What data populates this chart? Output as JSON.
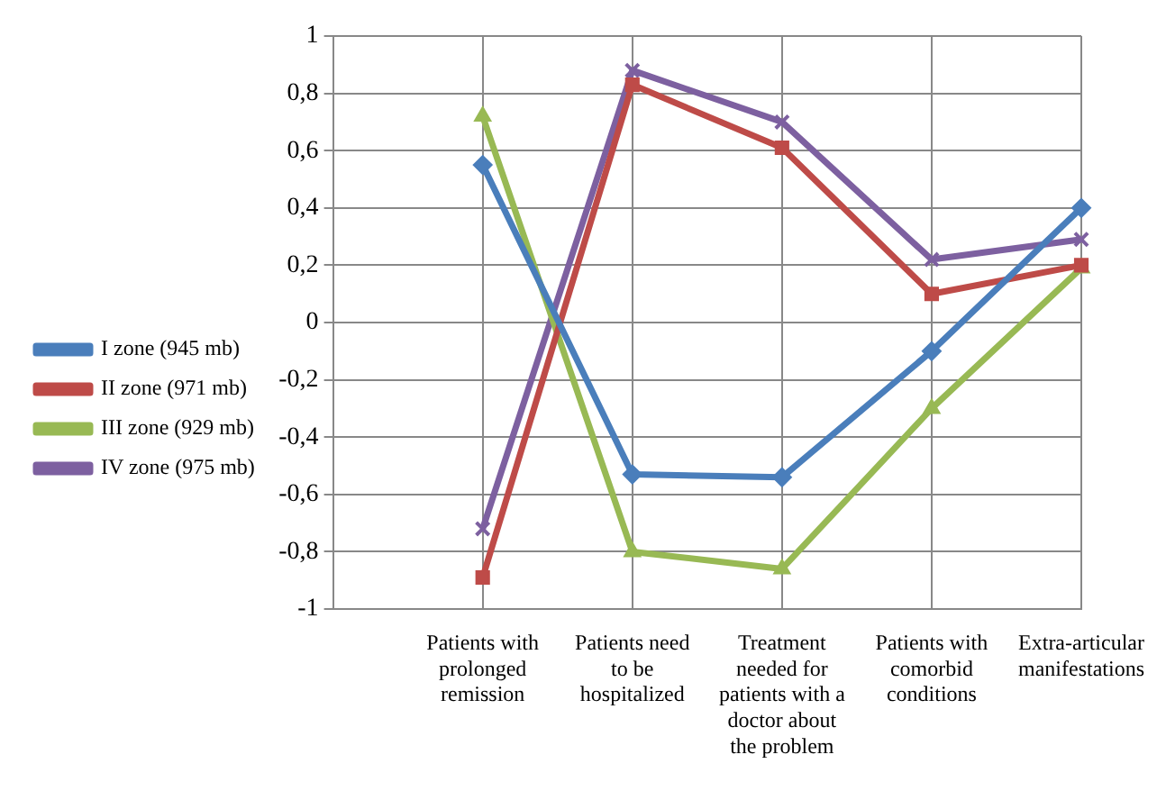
{
  "chart_data": {
    "type": "line",
    "categories": [
      null,
      "Patients with prolonged remission",
      "Patients need to be hospitalized",
      "Treatment needed for patients with a doctor about the problem",
      "Patients with comorbid conditions",
      "Extra-articular manifestations"
    ],
    "series": [
      {
        "name": "I zone (945 mb)",
        "color": "#4a7ebb",
        "marker": "diamond",
        "values": [
          null,
          0.55,
          -0.53,
          -0.54,
          -0.1,
          0.4
        ]
      },
      {
        "name": "II zone (971 mb)",
        "color": "#be4b48",
        "marker": "square",
        "values": [
          null,
          -0.89,
          0.83,
          0.61,
          0.1,
          0.2
        ]
      },
      {
        "name": "III zone (929 mb)",
        "color": "#98b954",
        "marker": "triangle",
        "values": [
          null,
          0.72,
          -0.8,
          -0.86,
          -0.3,
          0.19
        ]
      },
      {
        "name": "IV zone (975 mb)",
        "color": "#7d60a0",
        "marker": "cross",
        "values": [
          null,
          -0.72,
          0.88,
          0.7,
          0.22,
          0.29
        ]
      }
    ],
    "ylim": [
      -1,
      1
    ],
    "yticks": [
      {
        "value": -1,
        "label": "-1"
      },
      {
        "value": -0.8,
        "label": "-0,8"
      },
      {
        "value": -0.6,
        "label": "-0,6"
      },
      {
        "value": -0.4,
        "label": "-0,4"
      },
      {
        "value": -0.2,
        "label": "-0,2"
      },
      {
        "value": 0,
        "label": "0"
      },
      {
        "value": 0.2,
        "label": "0,2"
      },
      {
        "value": 0.4,
        "label": "0,4"
      },
      {
        "value": 0.6,
        "label": "0,6"
      },
      {
        "value": 0.8,
        "label": "0,8"
      },
      {
        "value": 1,
        "label": "1"
      }
    ],
    "grid": true,
    "legend": "left",
    "line_style": "solid"
  }
}
